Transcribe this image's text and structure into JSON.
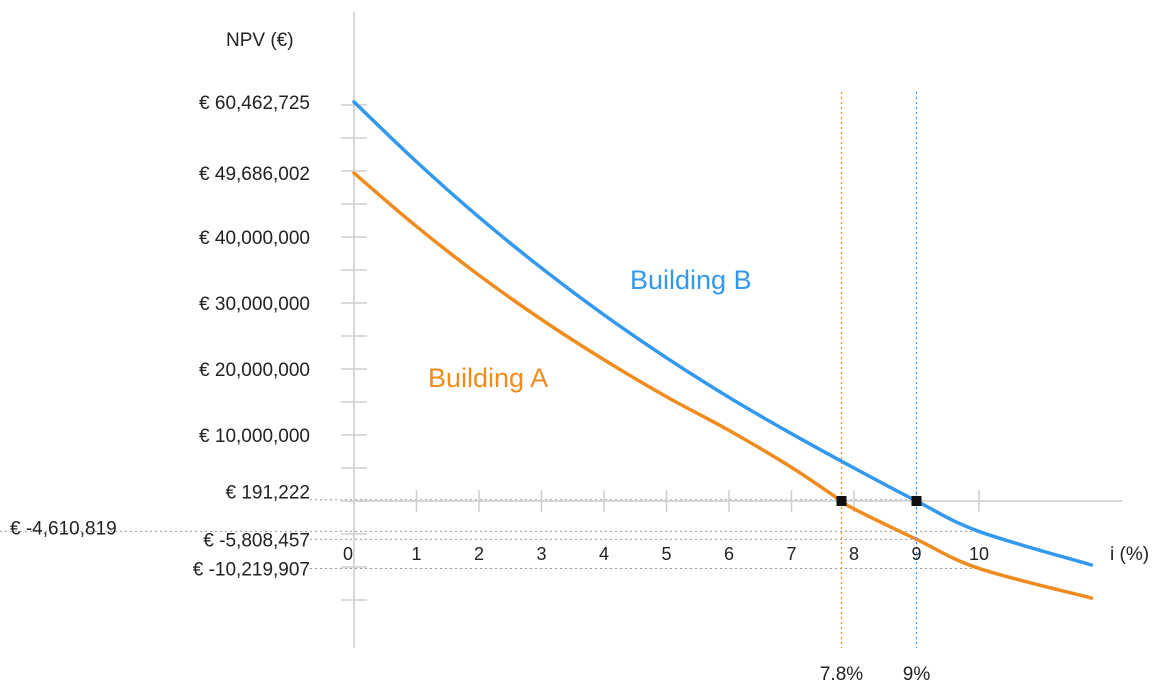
{
  "chart_data": {
    "type": "line",
    "ylabel": "NPV (€)",
    "xlabel": "i (%)",
    "x_ticks": [
      "0",
      "1",
      "2",
      "3",
      "4",
      "5",
      "6",
      "7",
      "8",
      "9",
      "10"
    ],
    "y_ticks": [
      {
        "label": "€ 60,462,725",
        "value": 60462725
      },
      {
        "label": "€ 49,686,002",
        "value": 49686002
      },
      {
        "label": "€ 40,000,000",
        "value": 40000000
      },
      {
        "label": "€ 30,000,000",
        "value": 30000000
      },
      {
        "label": "€ 20,000,000",
        "value": 20000000
      },
      {
        "label": "€ 10,000,000",
        "value": 10000000
      },
      {
        "label": "€ 191,222",
        "value": 191222
      },
      {
        "label": "€ -4,610,819",
        "value": -4610819
      },
      {
        "label": "€ -5,808,457",
        "value": -5808457
      },
      {
        "label": "€ -10,219,907",
        "value": -10219907
      }
    ],
    "xlim": [
      0,
      11.8
    ],
    "ylim": [
      -16000000,
      70000000
    ],
    "series": [
      {
        "name": "Building A",
        "color": "#f08c1e",
        "x": [
          0,
          1,
          2,
          3,
          4,
          5,
          6,
          7,
          7.8,
          8,
          9,
          10,
          11.8
        ],
        "y": [
          49686002,
          41600000,
          34200000,
          27500000,
          21400000,
          15800000,
          10700000,
          5100000,
          0,
          -1200000,
          -5808457,
          -10219907,
          -14700000
        ]
      },
      {
        "name": "Building B",
        "color": "#3399ee",
        "x": [
          0,
          1,
          2,
          3,
          4,
          5,
          6,
          7,
          8,
          9,
          10,
          11.8
        ],
        "y": [
          60462725,
          51400000,
          43000000,
          35300000,
          28200000,
          21700000,
          15700000,
          10200000,
          5000000,
          0,
          -4610819,
          -9700000
        ]
      }
    ],
    "irr_markers": [
      {
        "x": 7.8,
        "label": "7.8%",
        "color": "#f08c1e"
      },
      {
        "x": 9,
        "label": "9%",
        "color": "#3399ee"
      }
    ]
  }
}
